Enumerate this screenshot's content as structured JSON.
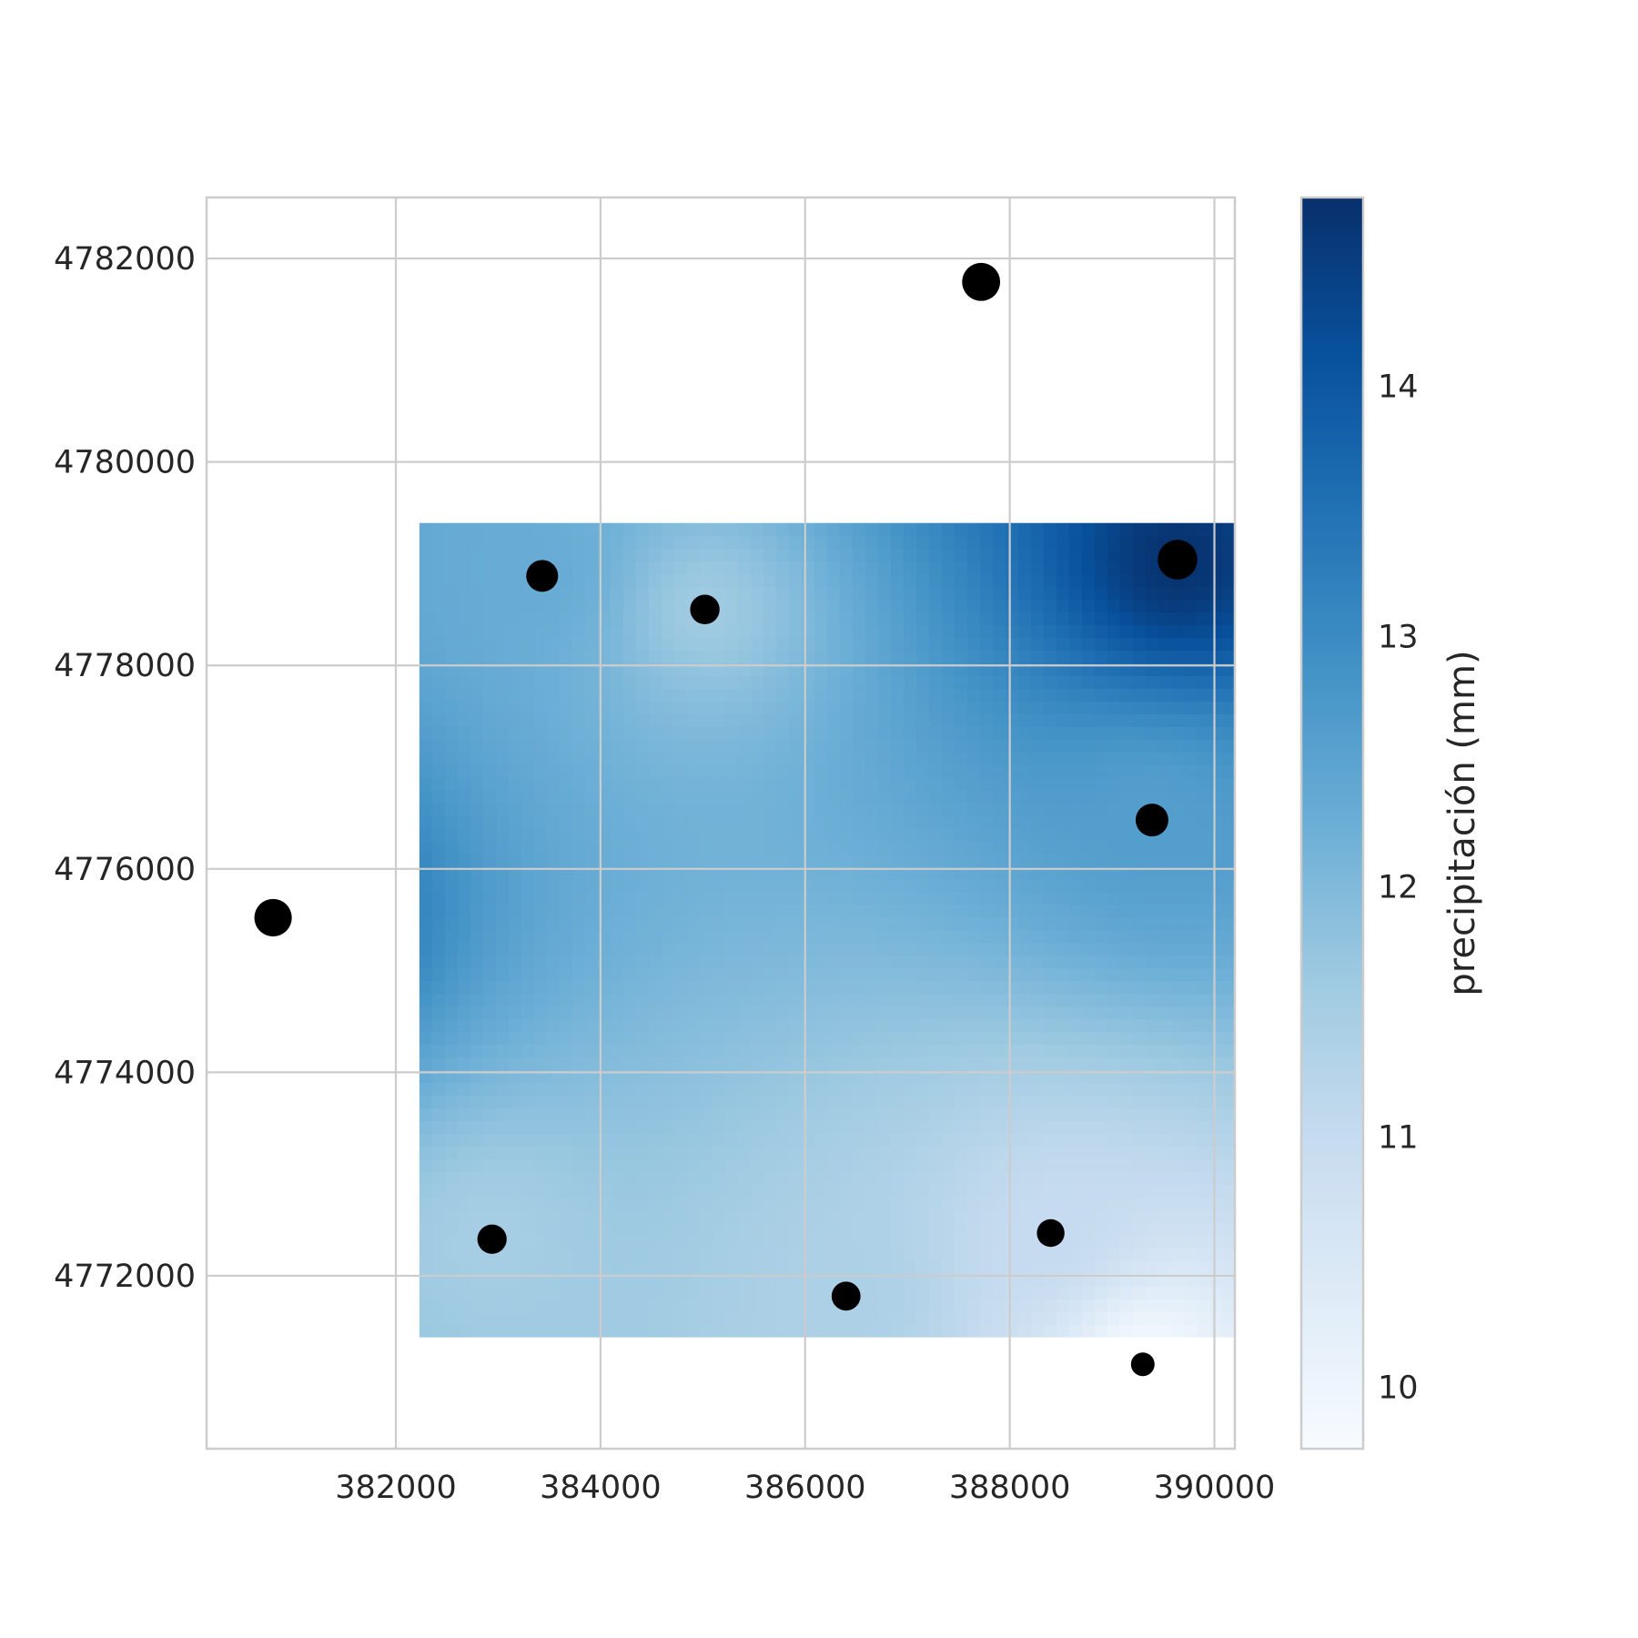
{
  "chart_data": {
    "type": "heatmap",
    "title": "",
    "xlabel": "",
    "ylabel": "",
    "xlim": [
      380150,
      390200
    ],
    "ylim": [
      4770300,
      4782600
    ],
    "xticks": [
      382000,
      384000,
      386000,
      388000,
      390000
    ],
    "yticks": [
      4772000,
      4774000,
      4776000,
      4778000,
      4780000,
      4782000
    ],
    "xtick_labels": [
      "382000",
      "384000",
      "386000",
      "388000",
      "390000"
    ],
    "ytick_labels": [
      "4772000",
      "4774000",
      "4776000",
      "4778000",
      "4780000",
      "4782000"
    ],
    "grid": true,
    "grid_color": "#cccccc",
    "spine_color": "#cccccc",
    "marker_color": "#000000",
    "raster_extent": {
      "x": [
        382230,
        390200
      ],
      "y": [
        4771400,
        4779400
      ]
    },
    "colormap": "Blues",
    "colorbar": {
      "label": "precipitación (mm)",
      "range": [
        9.75,
        14.75
      ],
      "ticks": [
        10,
        11,
        12,
        13,
        14
      ],
      "tick_labels": [
        "10",
        "11",
        "12",
        "13",
        "14"
      ]
    },
    "stations": [
      {
        "x": 380800,
        "y": 4775520,
        "precip": 14.0
      },
      {
        "x": 383430,
        "y": 4778880,
        "precip": 12.3
      },
      {
        "x": 385020,
        "y": 4778550,
        "precip": 11.6
      },
      {
        "x": 387720,
        "y": 4781770,
        "precip": 14.2
      },
      {
        "x": 389640,
        "y": 4779040,
        "precip": 14.7
      },
      {
        "x": 389390,
        "y": 4776480,
        "precip": 12.6
      },
      {
        "x": 382940,
        "y": 4772360,
        "precip": 11.5
      },
      {
        "x": 386400,
        "y": 4771800,
        "precip": 11.4
      },
      {
        "x": 388400,
        "y": 4772420,
        "precip": 11.0
      },
      {
        "x": 389300,
        "y": 4771130,
        "precip": 9.8
      }
    ]
  }
}
